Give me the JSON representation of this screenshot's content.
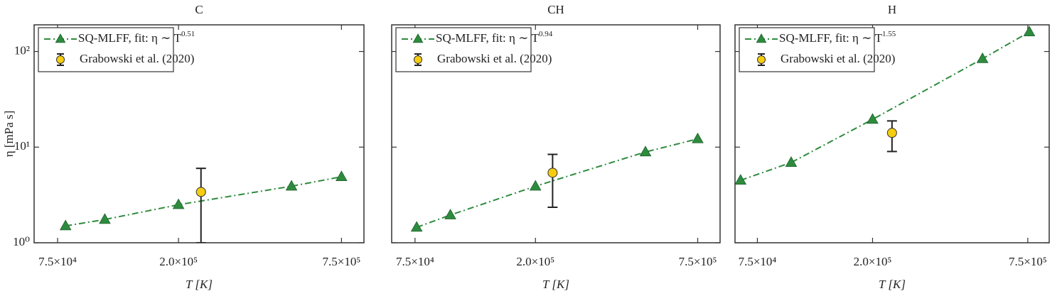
{
  "chart_data": [
    {
      "type": "scatter",
      "title": "C",
      "xlabel": "T [K]",
      "ylabel": "η [mPa s]",
      "xscale": "log",
      "yscale": "log",
      "xlim": [
        62000,
        900000
      ],
      "ylim": [
        1,
        190
      ],
      "xticks": [
        {
          "value": 75000,
          "label": "7.5×10⁴"
        },
        {
          "value": 200000,
          "label": "2.0×10⁵"
        },
        {
          "value": 750000,
          "label": "7.5×10⁵"
        }
      ],
      "yticks": [
        {
          "value": 1,
          "label": "10⁰"
        },
        {
          "value": 10,
          "label": "10¹"
        },
        {
          "value": 100,
          "label": "10²"
        }
      ],
      "legend": "upper left",
      "series": [
        {
          "name": "SQ-MLFF, fit:  η ∼ T",
          "fit_exponent": 0.51,
          "color": "#2e8b3e",
          "x": [
            80000,
            110000,
            200000,
            500000,
            750000
          ],
          "values": [
            1.5,
            1.75,
            2.5,
            3.9,
            4.9
          ]
        },
        {
          "name": "Grabowski et al. (2020)",
          "color": "#f6cd0f",
          "x": [
            240000
          ],
          "values": [
            3.4
          ],
          "yerr_low": [
            2.4
          ],
          "yerr_high": [
            2.6
          ]
        }
      ]
    },
    {
      "type": "scatter",
      "title": "CH",
      "xlabel": "T [K]",
      "xscale": "log",
      "yscale": "log",
      "xlim": [
        62000,
        900000
      ],
      "ylim": [
        1,
        190
      ],
      "xticks": [
        {
          "value": 75000,
          "label": "7.5×10⁴"
        },
        {
          "value": 200000,
          "label": "2.0×10⁵"
        },
        {
          "value": 750000,
          "label": "7.5×10⁵"
        }
      ],
      "yticks": [
        1,
        10,
        100
      ],
      "ytick_labels": false,
      "legend": "upper left",
      "series": [
        {
          "name": "SQ-MLFF, fit:  η ∼ T",
          "fit_exponent": 0.94,
          "color": "#2e8b3e",
          "x": [
            76000,
            100000,
            200000,
            490000,
            750000
          ],
          "values": [
            1.45,
            1.95,
            3.9,
            8.9,
            12.2
          ]
        },
        {
          "name": "Grabowski et al. (2020)",
          "color": "#f6cd0f",
          "x": [
            230000
          ],
          "values": [
            5.4
          ],
          "yerr_low": [
            3.05
          ],
          "yerr_high": [
            3.0
          ]
        }
      ]
    },
    {
      "type": "scatter",
      "title": "H",
      "xlabel": "T [K]",
      "xscale": "log",
      "yscale": "log",
      "xlim": [
        62000,
        900000
      ],
      "ylim": [
        1,
        190
      ],
      "xticks": [
        {
          "value": 75000,
          "label": "7.5×10⁴"
        },
        {
          "value": 200000,
          "label": "2.0×10⁵"
        },
        {
          "value": 750000,
          "label": "7.5×10⁵"
        }
      ],
      "yticks": [
        1,
        10,
        100
      ],
      "ytick_labels": false,
      "legend": "upper left",
      "series": [
        {
          "name": "SQ-MLFF, fit:  η ∼ T",
          "fit_exponent": 1.55,
          "color": "#2e8b3e",
          "x": [
            65000,
            100000,
            200000,
            510000,
            760000
          ],
          "values": [
            4.5,
            6.9,
            19.5,
            84,
            160
          ]
        },
        {
          "name": "Grabowski et al. (2020)",
          "color": "#f6cd0f",
          "x": [
            236000
          ],
          "values": [
            14.1
          ],
          "yerr_low": [
            5.1
          ],
          "yerr_high": [
            4.7
          ]
        }
      ]
    }
  ]
}
